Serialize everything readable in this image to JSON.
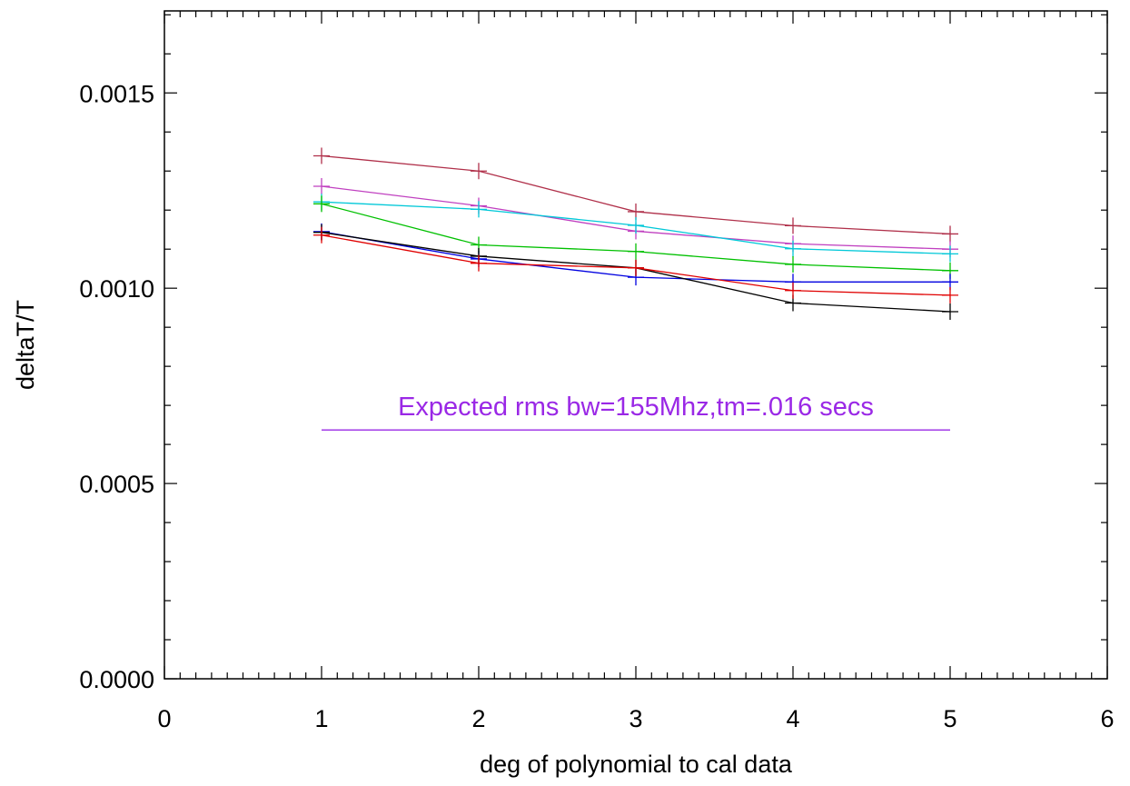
{
  "chart_data": {
    "type": "line",
    "title": "",
    "xlabel": "deg of polynomial to cal data",
    "ylabel": "deltaT/T",
    "xlim": [
      0,
      6
    ],
    "ylim": [
      0,
      0.00171
    ],
    "x_ticks": [
      "0",
      "1",
      "2",
      "3",
      "4",
      "5",
      "6"
    ],
    "y_ticks": [
      "0.0000",
      "0.0005",
      "0.0010",
      "0.0015"
    ],
    "x": [
      1,
      2,
      3,
      4,
      5
    ],
    "series": [
      {
        "color": "#b0304a",
        "values": [
          0.001339,
          0.0013,
          0.001196,
          0.00116,
          0.001139
        ]
      },
      {
        "color": "#c040c0",
        "values": [
          0.001261,
          0.001211,
          0.001146,
          0.001114,
          0.0011
        ]
      },
      {
        "color": "#00c8d8",
        "values": [
          0.001221,
          0.001202,
          0.001161,
          0.001101,
          0.001088
        ]
      },
      {
        "color": "#00c000",
        "values": [
          0.001216,
          0.001111,
          0.001094,
          0.001061,
          0.001045
        ]
      },
      {
        "color": "#0000e0",
        "values": [
          0.001145,
          0.001075,
          0.001028,
          0.001016,
          0.001016
        ]
      },
      {
        "color": "#000000",
        "values": [
          0.001143,
          0.001082,
          0.001052,
          0.000962,
          0.00094
        ]
      },
      {
        "color": "#e00000",
        "values": [
          0.001136,
          0.001064,
          0.001052,
          0.000994,
          0.000982
        ]
      }
    ],
    "annotation": {
      "text": "Expected rms bw=155Mhz,tm=.016 secs",
      "color": "#9a28e6",
      "x_range": [
        1,
        5
      ],
      "y": 0.000637
    }
  }
}
